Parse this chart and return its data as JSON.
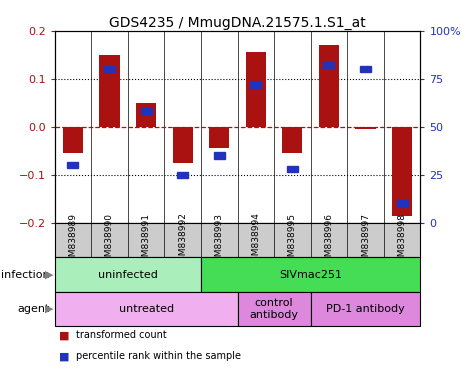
{
  "title": "GDS4235 / MmugDNA.21575.1.S1_at",
  "samples": [
    "GSM838989",
    "GSM838990",
    "GSM838991",
    "GSM838992",
    "GSM838993",
    "GSM838994",
    "GSM838995",
    "GSM838996",
    "GSM838997",
    "GSM838998"
  ],
  "red_values": [
    -0.055,
    0.15,
    0.05,
    -0.075,
    -0.045,
    0.155,
    -0.055,
    0.17,
    -0.005,
    -0.185
  ],
  "blue_values_pct": [
    30,
    80,
    58,
    25,
    35,
    72,
    28,
    82,
    80,
    10
  ],
  "ylim": [
    -0.2,
    0.2
  ],
  "y2lim": [
    0,
    100
  ],
  "yticks": [
    -0.2,
    -0.1,
    0.0,
    0.1,
    0.2
  ],
  "y2ticks": [
    0,
    25,
    50,
    75,
    100
  ],
  "red_color": "#aa1111",
  "blue_color": "#2233bb",
  "dashed_color": "#cc0000",
  "bar_width": 0.55,
  "infection_labels": [
    {
      "text": "uninfected",
      "start": 0,
      "end": 3,
      "color": "#aaeebb"
    },
    {
      "text": "SIVmac251",
      "start": 4,
      "end": 9,
      "color": "#44dd55"
    }
  ],
  "agent_labels": [
    {
      "text": "untreated",
      "start": 0,
      "end": 4,
      "color": "#f0b0f0"
    },
    {
      "text": "control\nantibody",
      "start": 5,
      "end": 6,
      "color": "#dd88dd"
    },
    {
      "text": "PD-1 antibody",
      "start": 7,
      "end": 9,
      "color": "#dd88dd"
    }
  ],
  "legend_red": "transformed count",
  "legend_blue": "percentile rank within the sample",
  "title_fontsize": 10,
  "tick_fontsize": 8,
  "label_fontsize": 8,
  "sample_fontsize": 6.5
}
